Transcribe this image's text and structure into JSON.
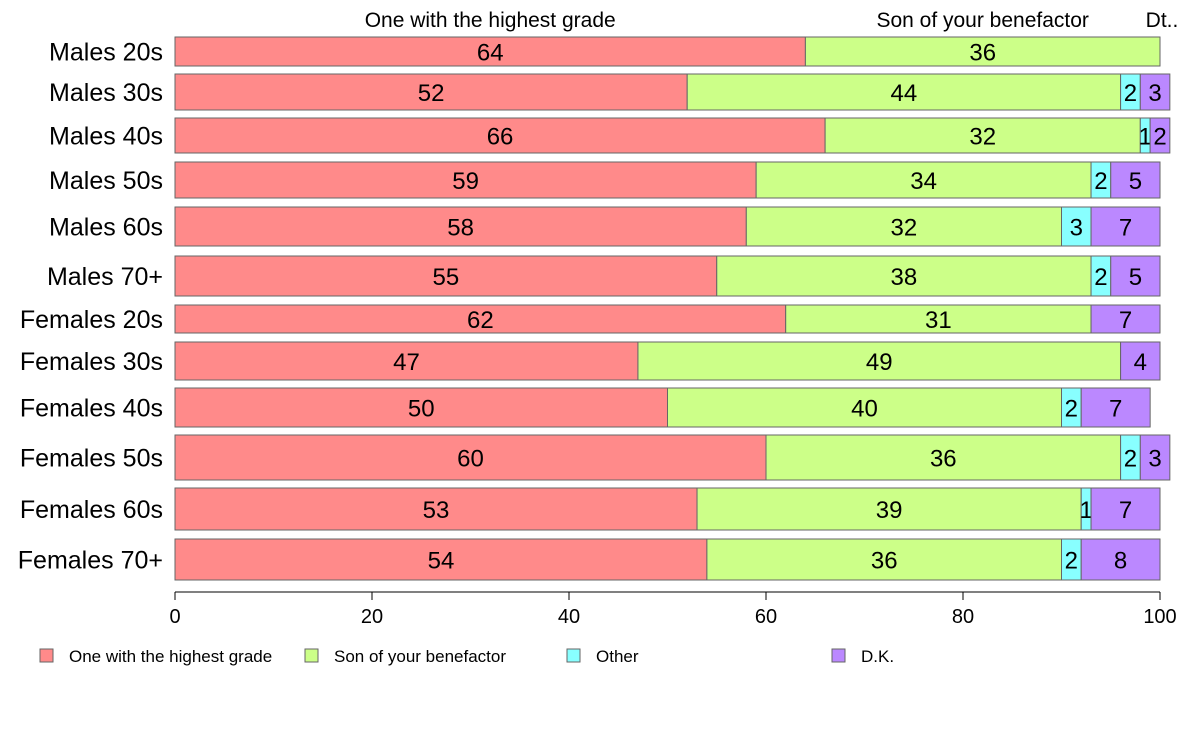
{
  "chart_data": {
    "type": "bar",
    "orientation": "horizontal",
    "stacked": true,
    "title": "",
    "xlabel": "",
    "ylabel": "",
    "xlim": [
      0,
      100
    ],
    "xticks": [
      "0",
      "20",
      "40",
      "60",
      "80",
      "100"
    ],
    "grid": false,
    "legend_position": "bottom",
    "top_labels": [
      "One with the highest grade",
      "Son of your benefactor",
      "Dt.."
    ],
    "categories": [
      "Males 20s",
      "Males 30s",
      "Males 40s",
      "Males 50s",
      "Males 60s",
      "Males 70+",
      "Females 20s",
      "Females 30s",
      "Females 40s",
      "Females 50s",
      "Females 60s",
      "Females 70+"
    ],
    "series": [
      {
        "name": "One with the highest grade",
        "color": "#ff8a8a",
        "values": [
          64,
          52,
          66,
          59,
          58,
          55,
          62,
          47,
          50,
          60,
          53,
          54
        ]
      },
      {
        "name": "Son of your benefactor",
        "color": "#ccff88",
        "values": [
          36,
          44,
          32,
          34,
          32,
          38,
          31,
          49,
          40,
          36,
          39,
          36
        ]
      },
      {
        "name": "Other",
        "color": "#88ffff",
        "values": [
          0,
          2,
          1,
          2,
          3,
          2,
          0,
          0,
          2,
          2,
          1,
          2
        ]
      },
      {
        "name": "D.K.",
        "color": "#bb88ff",
        "values": [
          0,
          3,
          2,
          5,
          7,
          5,
          7,
          4,
          7,
          3,
          7,
          8
        ]
      }
    ]
  }
}
